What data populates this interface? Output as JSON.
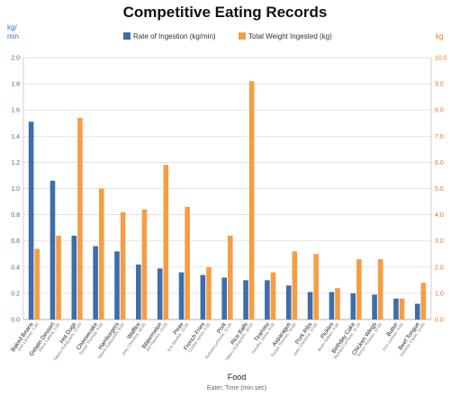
{
  "chart_data": {
    "type": "bar",
    "title": "Competitive Eating Records",
    "xlabel": "Food",
    "xlabel_sub": "Eater, Time (min:sec)",
    "y_left_unit": "kg/\nmin",
    "y_right_unit": "kg",
    "ylim_left": [
      0,
      2.0
    ],
    "ylim_right": [
      0,
      10.0
    ],
    "yticks_left": [
      "0.0",
      "0.2",
      "0.4",
      "0.6",
      "0.8",
      "1.0",
      "1.2",
      "1.4",
      "1.6",
      "1.8",
      "2.0"
    ],
    "yticks_right": [
      "0.0",
      "1.0",
      "2.0",
      "3.0",
      "4.0",
      "5.0",
      "6.0",
      "7.0",
      "8.0",
      "9.0",
      "10.0"
    ],
    "grid": true,
    "legend_position": "top",
    "categories": [
      "Baked Beans",
      "Gelatin Dessert",
      "Hot Dogs",
      "Cheesecake",
      "Hamburgers",
      "Waffles",
      "Watermelon",
      "Peas",
      "French Fries",
      "Pork",
      "Rice Balls",
      "Tiramisu",
      "Asparagus",
      "Pork Ribs",
      "Pickles",
      "Birthday Cake",
      "Chicken Wings",
      "Butter",
      "Beef Tongue"
    ],
    "subtitles": [
      "Don Lerman, 1:48",
      "Steve Lakind, 5:00",
      "Takeru Kobayashi, 12:00",
      "Sonya Thomas, 9:00",
      "Takeru Kobayashi, 8:00",
      "Joey Chestnut, 10:00",
      "Jim Reeves, 15:00",
      "Eric Booker, 12:00",
      "Cookie Jarvis, 6:00",
      "Richard LeFevre, 12:00",
      "Takeru Kobayashi, 30:00",
      "Timothy Janus, 6:00",
      "Sonya Thomas, 10:00",
      "Joey Chestnut, 12:00",
      "Brian Seiken, 6:00",
      "Richard LeFevre, 11:20",
      "Sonya Thomas, 12:00",
      "Don Lerman, 5:00",
      "Dominic Cardo, 12:00"
    ],
    "series": [
      {
        "name": "Rate of Ingestion (kg/min)",
        "axis": "left",
        "color": "#3d6eab",
        "values": [
          1.51,
          1.06,
          0.64,
          0.56,
          0.52,
          0.42,
          0.39,
          0.36,
          0.34,
          0.32,
          0.3,
          0.3,
          0.26,
          0.21,
          0.21,
          0.2,
          0.19,
          0.16,
          0.12
        ]
      },
      {
        "name": "Total Weight Ingested (kg)",
        "axis": "right",
        "color": "#f59d45",
        "values": [
          2.7,
          3.2,
          7.7,
          5.0,
          4.1,
          4.2,
          5.9,
          4.3,
          2.0,
          3.2,
          9.1,
          1.8,
          2.6,
          2.5,
          1.2,
          2.3,
          2.3,
          0.8,
          1.4
        ]
      }
    ]
  }
}
